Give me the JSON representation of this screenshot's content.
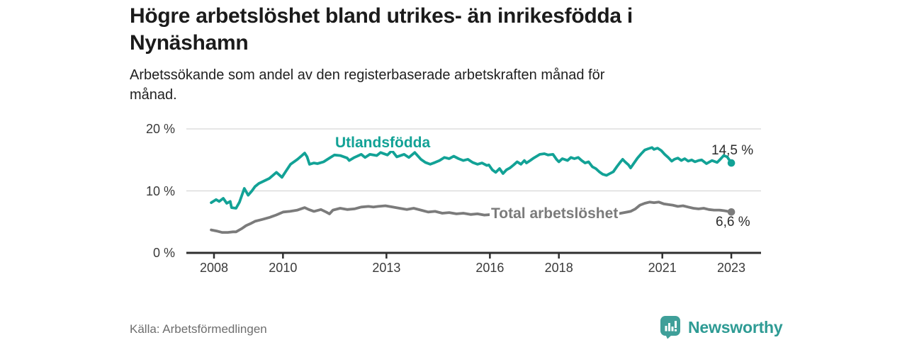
{
  "header": {
    "title_line1": "Högre arbetslöshet bland utrikes- än inrikesfödda i",
    "title_line2": "Nynäshamn",
    "subtitle_line1": "Arbetssökande som andel av den registerbaserade arbetskraften månad för",
    "subtitle_line2": "månad."
  },
  "footer": {
    "source": "Källa: Arbetsförmedlingen",
    "brand": "Newsworthy"
  },
  "colors": {
    "accent_teal": "#12a296",
    "line_gray": "#7b7b7b",
    "axis": "#2f2f2f",
    "gridline": "#d7d7d7",
    "brand_teal": "#2e9b94",
    "value_label": "#2b2b2b"
  },
  "chart_data": {
    "type": "line",
    "title": "Högre arbetslöshet bland utrikes- än inrikesfödda i Nynäshamn",
    "subtitle": "Arbetssökande som andel av den registerbaserade arbetskraften månad för månad.",
    "xlabel": "",
    "ylabel": "",
    "xlim": [
      2007.2,
      2023.8
    ],
    "ylim": [
      0,
      20
    ],
    "grid": "horizontal",
    "legend_position": "inline-labels",
    "x_axis": {
      "ticks": [
        2008,
        2010,
        2013,
        2016,
        2018,
        2021,
        2023
      ]
    },
    "y_axis": {
      "ticks": [
        {
          "value": 0,
          "label": "0 %"
        },
        {
          "value": 10,
          "label": "10 %"
        },
        {
          "value": 20,
          "label": "20 %"
        }
      ]
    },
    "series": [
      {
        "id": "utlandsfodda",
        "label": "Utlandsfödda",
        "color": "#12a296",
        "end_label": "14,5 %",
        "end_value": 14.5,
        "points": [
          [
            2007.92,
            8.1
          ],
          [
            2008.06,
            8.6
          ],
          [
            2008.15,
            8.3
          ],
          [
            2008.27,
            8.8
          ],
          [
            2008.37,
            8.0
          ],
          [
            2008.47,
            8.3
          ],
          [
            2008.51,
            7.3
          ],
          [
            2008.64,
            7.2
          ],
          [
            2008.74,
            8.2
          ],
          [
            2008.88,
            10.4
          ],
          [
            2008.99,
            9.3
          ],
          [
            2009.1,
            10.0
          ],
          [
            2009.19,
            10.7
          ],
          [
            2009.3,
            11.2
          ],
          [
            2009.45,
            11.6
          ],
          [
            2009.6,
            12.0
          ],
          [
            2009.81,
            13.0
          ],
          [
            2009.97,
            12.2
          ],
          [
            2010.1,
            13.3
          ],
          [
            2010.22,
            14.3
          ],
          [
            2010.42,
            15.1
          ],
          [
            2010.55,
            15.7
          ],
          [
            2010.63,
            16.1
          ],
          [
            2010.7,
            15.5
          ],
          [
            2010.77,
            14.3
          ],
          [
            2010.9,
            14.5
          ],
          [
            2011.0,
            14.4
          ],
          [
            2011.18,
            14.7
          ],
          [
            2011.35,
            15.3
          ],
          [
            2011.49,
            15.8
          ],
          [
            2011.66,
            15.7
          ],
          [
            2011.86,
            15.3
          ],
          [
            2011.92,
            14.9
          ],
          [
            2012.07,
            15.4
          ],
          [
            2012.27,
            15.9
          ],
          [
            2012.38,
            15.4
          ],
          [
            2012.52,
            15.9
          ],
          [
            2012.72,
            15.7
          ],
          [
            2012.83,
            16.2
          ],
          [
            2013.03,
            15.8
          ],
          [
            2013.16,
            16.5
          ],
          [
            2013.3,
            15.5
          ],
          [
            2013.51,
            15.9
          ],
          [
            2013.65,
            15.4
          ],
          [
            2013.82,
            16.2
          ],
          [
            2014.0,
            15.1
          ],
          [
            2014.13,
            14.6
          ],
          [
            2014.27,
            14.3
          ],
          [
            2014.41,
            14.6
          ],
          [
            2014.54,
            14.9
          ],
          [
            2014.68,
            15.4
          ],
          [
            2014.82,
            15.2
          ],
          [
            2014.95,
            15.6
          ],
          [
            2015.09,
            15.2
          ],
          [
            2015.23,
            14.9
          ],
          [
            2015.36,
            15.1
          ],
          [
            2015.5,
            14.6
          ],
          [
            2015.64,
            14.3
          ],
          [
            2015.77,
            14.5
          ],
          [
            2015.91,
            14.1
          ],
          [
            2015.97,
            14.2
          ],
          [
            2016.07,
            13.4
          ],
          [
            2016.17,
            13.0
          ],
          [
            2016.28,
            13.6
          ],
          [
            2016.38,
            12.8
          ],
          [
            2016.48,
            13.4
          ],
          [
            2016.58,
            13.7
          ],
          [
            2016.69,
            14.2
          ],
          [
            2016.79,
            14.7
          ],
          [
            2016.9,
            14.3
          ],
          [
            2017.0,
            14.9
          ],
          [
            2017.06,
            14.5
          ],
          [
            2017.17,
            14.9
          ],
          [
            2017.27,
            15.3
          ],
          [
            2017.45,
            15.9
          ],
          [
            2017.58,
            16.0
          ],
          [
            2017.69,
            15.8
          ],
          [
            2017.83,
            15.9
          ],
          [
            2017.93,
            15.1
          ],
          [
            2018.0,
            14.7
          ],
          [
            2018.1,
            15.2
          ],
          [
            2018.25,
            14.9
          ],
          [
            2018.35,
            15.4
          ],
          [
            2018.45,
            15.2
          ],
          [
            2018.56,
            15.4
          ],
          [
            2018.66,
            14.9
          ],
          [
            2018.76,
            14.5
          ],
          [
            2018.86,
            14.7
          ],
          [
            2018.97,
            13.9
          ],
          [
            2019.07,
            13.6
          ],
          [
            2019.17,
            13.1
          ],
          [
            2019.27,
            12.7
          ],
          [
            2019.38,
            12.5
          ],
          [
            2019.48,
            12.8
          ],
          [
            2019.58,
            13.1
          ],
          [
            2019.68,
            13.9
          ],
          [
            2019.79,
            14.7
          ],
          [
            2019.85,
            15.1
          ],
          [
            2019.92,
            14.7
          ],
          [
            2020.02,
            14.2
          ],
          [
            2020.08,
            13.7
          ],
          [
            2020.18,
            14.5
          ],
          [
            2020.28,
            15.3
          ],
          [
            2020.39,
            16.0
          ],
          [
            2020.49,
            16.6
          ],
          [
            2020.59,
            16.8
          ],
          [
            2020.7,
            17.0
          ],
          [
            2020.76,
            16.7
          ],
          [
            2020.86,
            16.9
          ],
          [
            2020.97,
            16.5
          ],
          [
            2021.07,
            15.9
          ],
          [
            2021.17,
            15.4
          ],
          [
            2021.27,
            14.8
          ],
          [
            2021.35,
            15.1
          ],
          [
            2021.45,
            15.3
          ],
          [
            2021.55,
            14.9
          ],
          [
            2021.65,
            15.2
          ],
          [
            2021.75,
            14.8
          ],
          [
            2021.85,
            15.0
          ],
          [
            2021.95,
            14.7
          ],
          [
            2022.05,
            14.9
          ],
          [
            2022.14,
            15.0
          ],
          [
            2022.28,
            14.4
          ],
          [
            2022.44,
            14.9
          ],
          [
            2022.59,
            14.6
          ],
          [
            2022.68,
            15.1
          ],
          [
            2022.78,
            15.7
          ],
          [
            2022.88,
            15.5
          ],
          [
            2023.0,
            14.5
          ]
        ]
      },
      {
        "id": "total",
        "label": "Total arbetslöshet",
        "color": "#7b7b7b",
        "end_label": "6,6 %",
        "end_value": 6.6,
        "points": [
          [
            2007.92,
            3.7
          ],
          [
            2008.1,
            3.5
          ],
          [
            2008.23,
            3.3
          ],
          [
            2008.4,
            3.3
          ],
          [
            2008.55,
            3.4
          ],
          [
            2008.64,
            3.4
          ],
          [
            2008.8,
            3.9
          ],
          [
            2008.93,
            4.4
          ],
          [
            2009.05,
            4.7
          ],
          [
            2009.19,
            5.1
          ],
          [
            2009.4,
            5.4
          ],
          [
            2009.6,
            5.7
          ],
          [
            2009.8,
            6.1
          ],
          [
            2010.01,
            6.6
          ],
          [
            2010.2,
            6.7
          ],
          [
            2010.42,
            6.9
          ],
          [
            2010.63,
            7.3
          ],
          [
            2010.75,
            7.0
          ],
          [
            2010.9,
            6.7
          ],
          [
            2011.1,
            7.0
          ],
          [
            2011.25,
            6.6
          ],
          [
            2011.35,
            6.3
          ],
          [
            2011.45,
            6.9
          ],
          [
            2011.66,
            7.2
          ],
          [
            2011.86,
            7.0
          ],
          [
            2012.07,
            7.1
          ],
          [
            2012.27,
            7.4
          ],
          [
            2012.48,
            7.5
          ],
          [
            2012.62,
            7.4
          ],
          [
            2012.76,
            7.5
          ],
          [
            2012.97,
            7.6
          ],
          [
            2013.18,
            7.4
          ],
          [
            2013.38,
            7.2
          ],
          [
            2013.59,
            7.0
          ],
          [
            2013.79,
            7.2
          ],
          [
            2014.0,
            6.9
          ],
          [
            2014.21,
            6.6
          ],
          [
            2014.41,
            6.7
          ],
          [
            2014.62,
            6.4
          ],
          [
            2014.82,
            6.5
          ],
          [
            2015.03,
            6.3
          ],
          [
            2015.23,
            6.4
          ],
          [
            2015.44,
            6.2
          ],
          [
            2015.64,
            6.3
          ],
          [
            2015.84,
            6.1
          ],
          [
            2016.05,
            6.2
          ],
          [
            2016.3,
            6.3
          ],
          [
            2016.55,
            6.2
          ],
          [
            2016.8,
            6.3
          ],
          [
            2017.05,
            6.2
          ],
          [
            2017.3,
            6.3
          ],
          [
            2017.55,
            6.2
          ],
          [
            2017.8,
            6.3
          ],
          [
            2018.05,
            6.4
          ],
          [
            2018.3,
            6.3
          ],
          [
            2018.55,
            6.2
          ],
          [
            2018.8,
            6.3
          ],
          [
            2019.05,
            6.2
          ],
          [
            2019.3,
            6.1
          ],
          [
            2019.55,
            6.2
          ],
          [
            2019.8,
            6.4
          ],
          [
            2020.08,
            6.7
          ],
          [
            2020.22,
            7.1
          ],
          [
            2020.35,
            7.7
          ],
          [
            2020.49,
            8.0
          ],
          [
            2020.63,
            8.2
          ],
          [
            2020.76,
            8.1
          ],
          [
            2020.9,
            8.2
          ],
          [
            2021.05,
            7.9
          ],
          [
            2021.17,
            7.8
          ],
          [
            2021.3,
            7.7
          ],
          [
            2021.45,
            7.5
          ],
          [
            2021.6,
            7.6
          ],
          [
            2021.75,
            7.4
          ],
          [
            2021.9,
            7.2
          ],
          [
            2022.05,
            7.1
          ],
          [
            2022.2,
            7.2
          ],
          [
            2022.35,
            7.0
          ],
          [
            2022.5,
            6.9
          ],
          [
            2022.65,
            6.9
          ],
          [
            2022.8,
            6.8
          ],
          [
            2022.9,
            6.7
          ],
          [
            2023.0,
            6.6
          ]
        ]
      }
    ]
  }
}
